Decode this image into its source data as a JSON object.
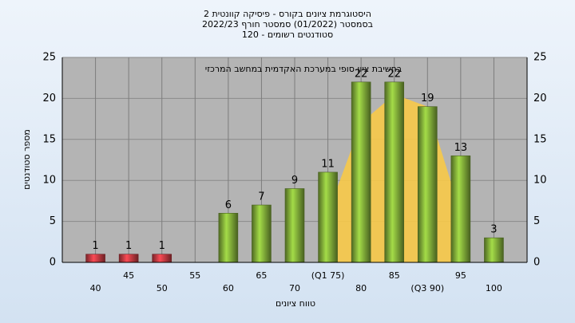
{
  "chart_data": {
    "type": "bar",
    "title_lines": [
      "היסטוגרמת ציונים בקורס - פיסיקה קוונטית 2",
      "בסמסטר  (01/2022)  סמסטר חורף 2022/23",
      "סטודנטים רשומים - 120"
    ],
    "annotation": "בחשיבת ציון סופי במערכת האקדמית במחשב המרכזי",
    "x_label": "טווח ציונים",
    "y_label": "מספר סטודנטים",
    "categories": [
      "40",
      "45",
      "50",
      "55",
      "60",
      "65",
      "70",
      "(Q1 75)",
      "80",
      "85",
      "(Q3 90)",
      "95",
      "100"
    ],
    "values": [
      1,
      1,
      1,
      0,
      6,
      7,
      9,
      11,
      22,
      22,
      19,
      13,
      3
    ],
    "colors": [
      "#d9414a",
      "#d9414a",
      "#d9414a",
      "#8fbf3f",
      "#8fbf3f",
      "#8fbf3f",
      "#8fbf3f",
      "#8fbf3f",
      "#8fbf3f",
      "#8fbf3f",
      "#8fbf3f",
      "#8fbf3f",
      "#8fbf3f"
    ],
    "overlay": {
      "color": "#f7c948",
      "values": [
        null,
        null,
        null,
        null,
        null,
        null,
        null,
        6,
        17,
        20.5,
        19,
        6,
        null
      ]
    },
    "ylim": [
      0,
      25
    ],
    "yticks": [
      0,
      5,
      10,
      15,
      20,
      25
    ],
    "grid": true
  }
}
